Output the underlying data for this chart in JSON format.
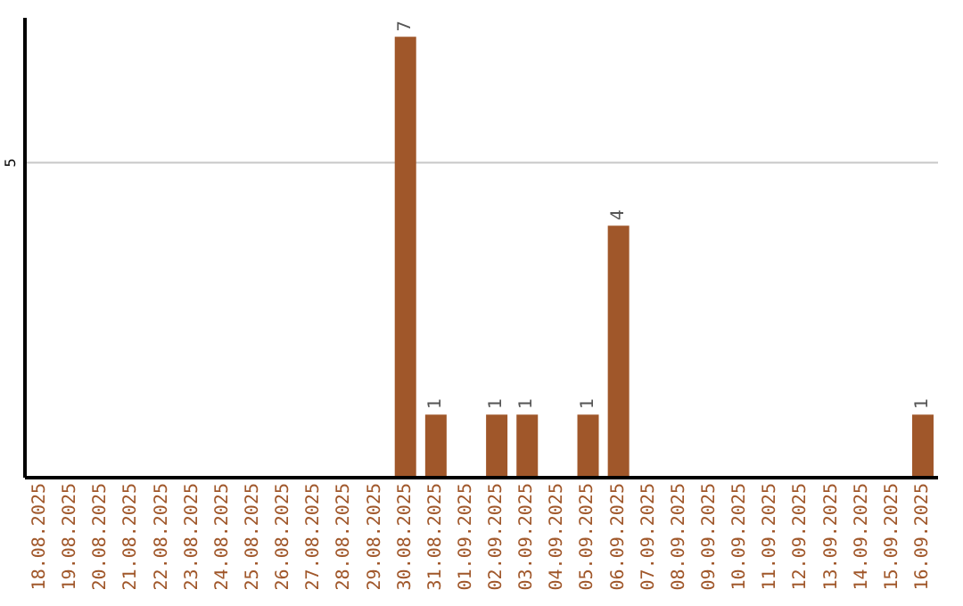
{
  "chart_data": {
    "type": "bar",
    "categories": [
      "18.08.2025",
      "19.08.2025",
      "20.08.2025",
      "21.08.2025",
      "22.08.2025",
      "23.08.2025",
      "24.08.2025",
      "25.08.2025",
      "26.08.2025",
      "27.08.2025",
      "28.08.2025",
      "29.08.2025",
      "30.08.2025",
      "31.08.2025",
      "01.09.2025",
      "02.09.2025",
      "03.09.2025",
      "04.09.2025",
      "05.09.2025",
      "06.09.2025",
      "07.09.2025",
      "08.09.2025",
      "09.09.2025",
      "10.09.2025",
      "11.09.2025",
      "12.09.2025",
      "13.09.2025",
      "14.09.2025",
      "15.09.2025",
      "16.09.2025"
    ],
    "values": [
      null,
      null,
      null,
      null,
      null,
      null,
      null,
      null,
      null,
      null,
      null,
      null,
      7,
      1,
      null,
      1,
      1,
      null,
      1,
      4,
      null,
      null,
      null,
      null,
      null,
      null,
      null,
      null,
      null,
      1
    ],
    "color": "#a0572a",
    "ylim": [
      0,
      7.3
    ],
    "yticks": [
      5
    ],
    "grid": "y",
    "data_labels": true,
    "legend": false
  }
}
